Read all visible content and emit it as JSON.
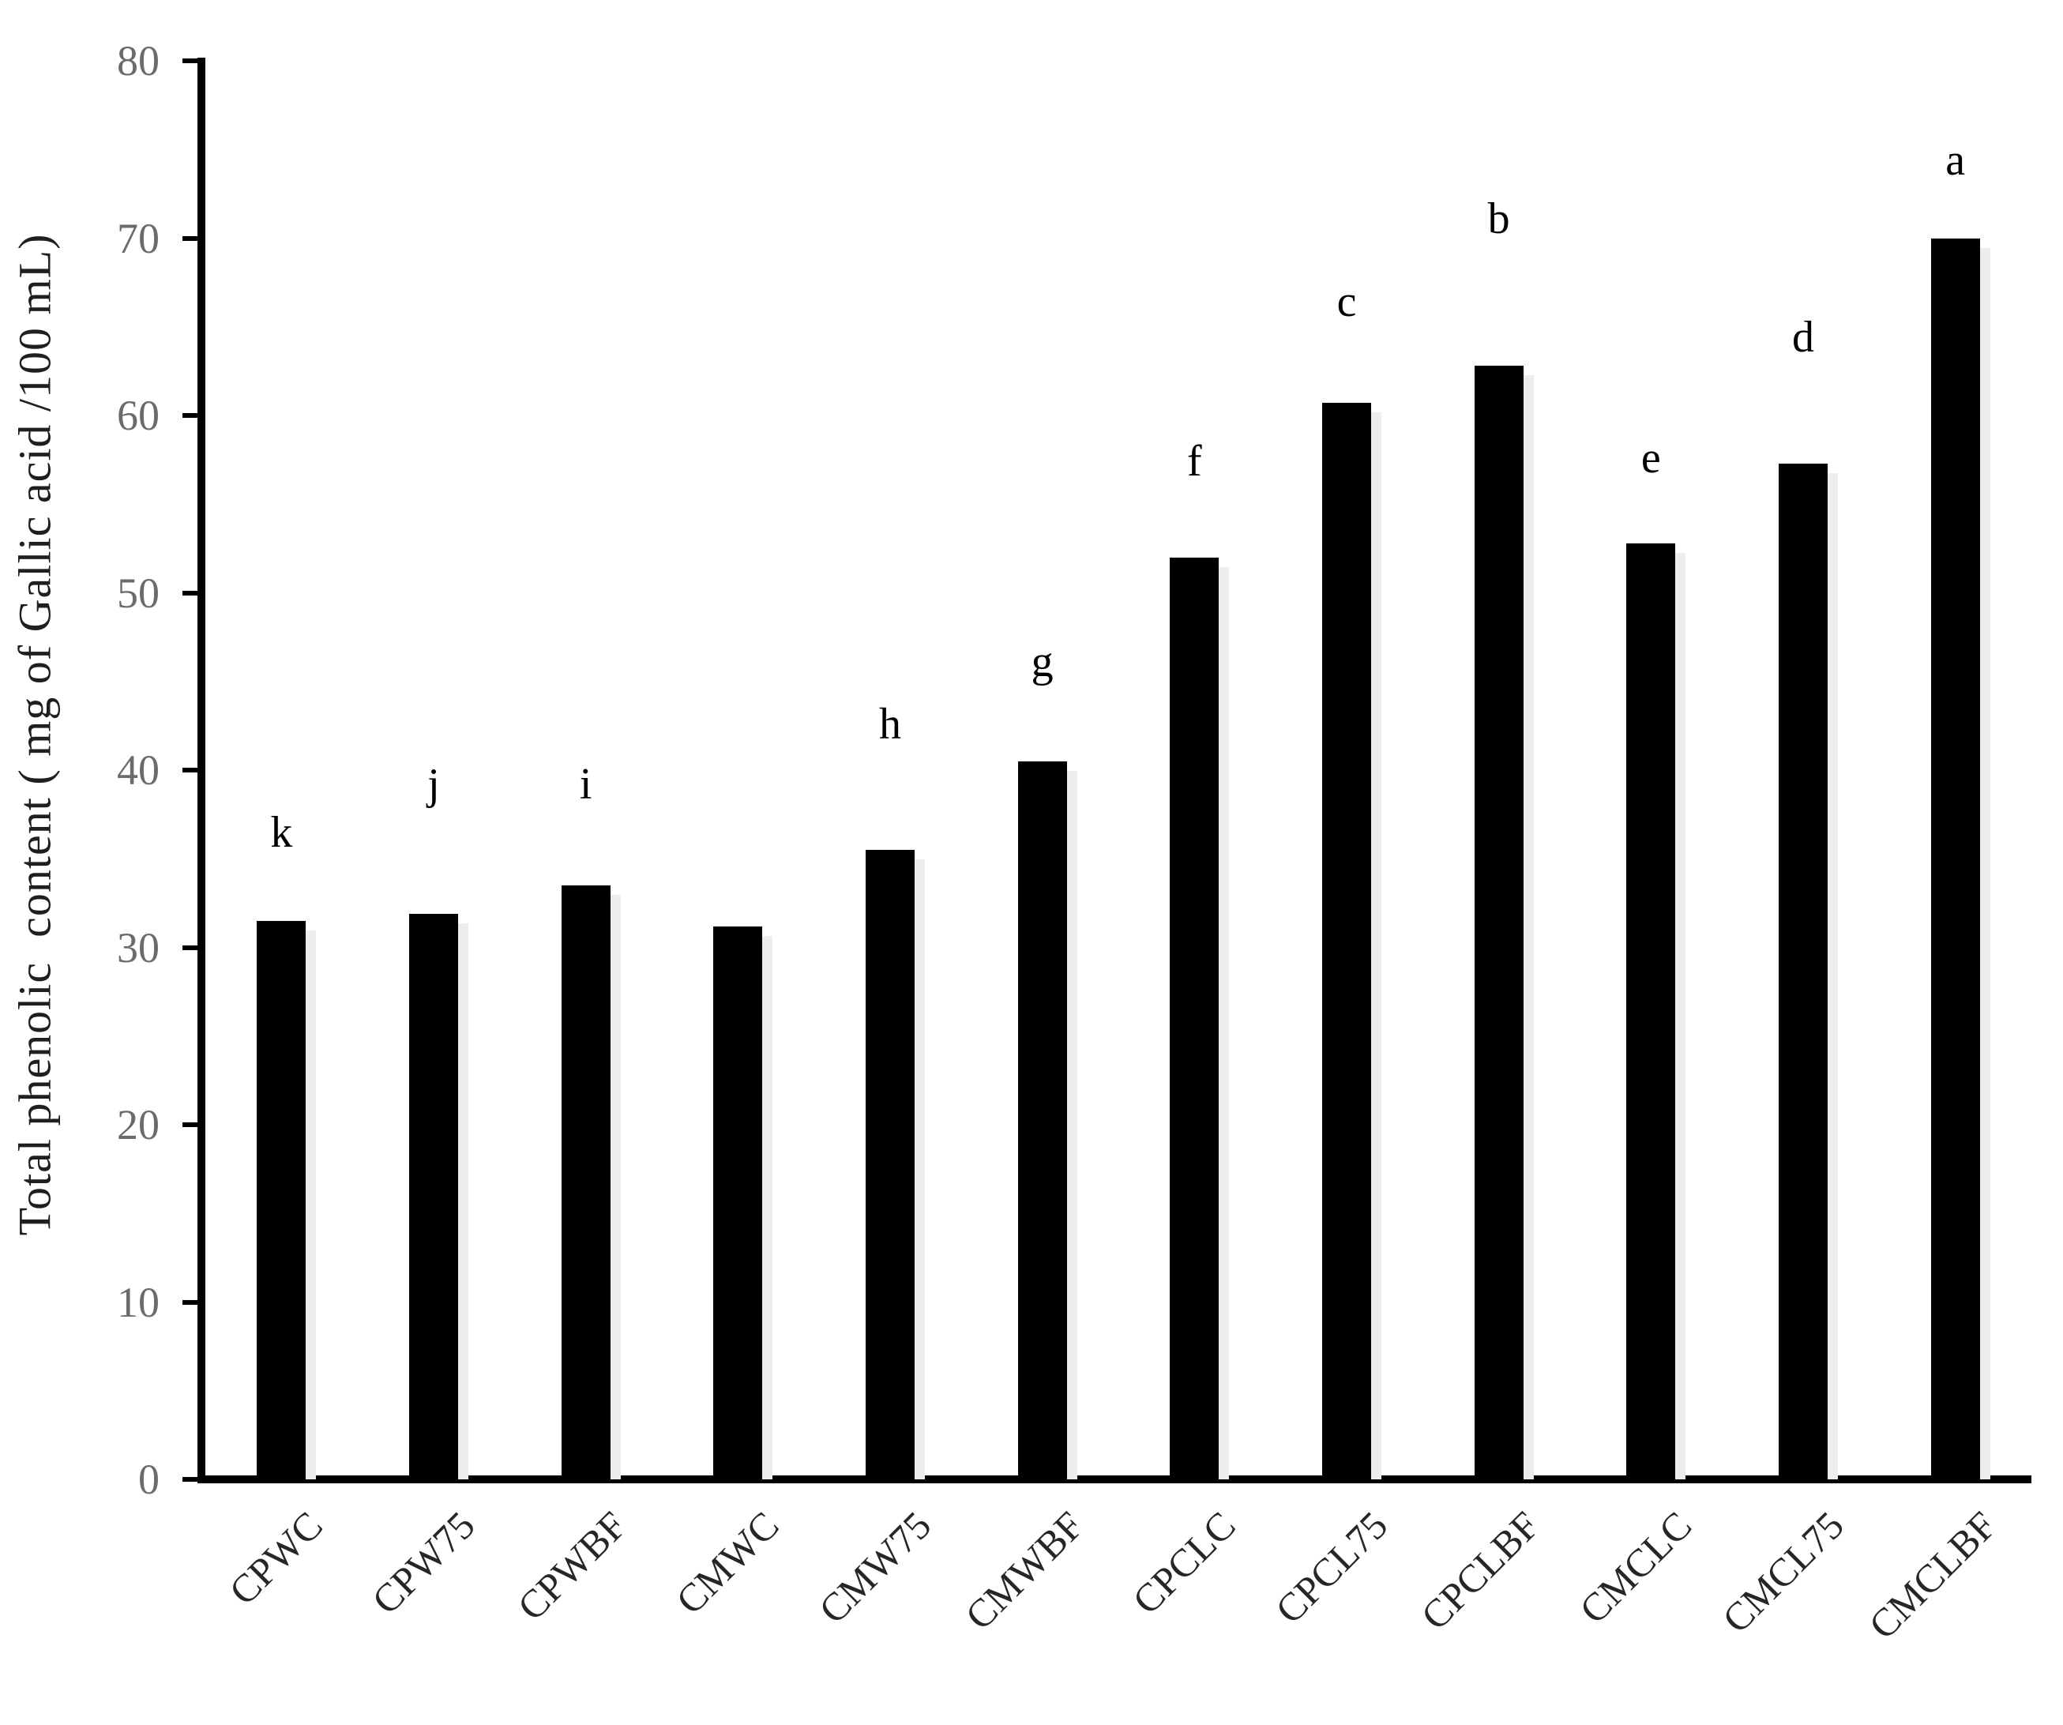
{
  "chart_data": {
    "type": "bar",
    "title": "",
    "ylabel": "Total phenolic  content ( mg of Gallic acid /100 mL)",
    "xlabel": "",
    "ylim": [
      0,
      80
    ],
    "ytick_step": 10,
    "yticks": [
      0,
      10,
      20,
      30,
      40,
      50,
      60,
      70,
      80
    ],
    "grid": false,
    "legend": "none",
    "bar_color": "#000000",
    "axis_color": "#000000",
    "tick_label_color": "#6b6b6b",
    "category_label_color": "#262626",
    "categories": [
      "CPWC",
      "CPW75",
      "CPWBF",
      "CMWC",
      "CMW75",
      "CMWBF",
      "CPCLC",
      "CPCL75",
      "CPCLBF",
      "CMCLC",
      "CMCL75",
      "CMCLBF"
    ],
    "values": [
      31.5,
      31.9,
      33.5,
      31.2,
      35.5,
      40.5,
      52.0,
      60.7,
      62.8,
      52.8,
      57.3,
      70.0
    ],
    "significance_letters": [
      "k",
      "j",
      "i",
      "",
      "h",
      "g",
      "f",
      "c",
      "b",
      "e",
      "d",
      "a"
    ],
    "letter_y_positions": [
      36.5,
      39.2,
      39.2,
      null,
      42.6,
      46.1,
      57.4,
      66.4,
      71.1,
      57.6,
      64.4,
      74.4
    ]
  }
}
